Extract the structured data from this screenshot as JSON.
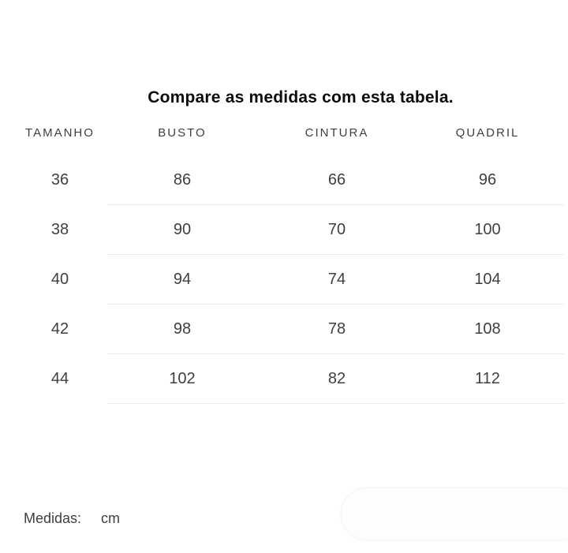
{
  "title": "Compare as medidas com esta tabela.",
  "table": {
    "headers": [
      "TAMANHO",
      "BUSTO",
      "CINTURA",
      "QUADRIL"
    ],
    "rows": [
      [
        "36",
        "86",
        "66",
        "96"
      ],
      [
        "38",
        "90",
        "70",
        "100"
      ],
      [
        "40",
        "94",
        "74",
        "104"
      ],
      [
        "42",
        "98",
        "78",
        "108"
      ],
      [
        "44",
        "102",
        "82",
        "112"
      ]
    ]
  },
  "footer": {
    "label": "Medidas:",
    "unit": "cm"
  },
  "colors": {
    "background": "#ffffff",
    "title_text": "#0d0d0d",
    "body_text": "#3f3f3f",
    "divider": "#ececec",
    "faint_shape": "#f8f8f8"
  }
}
